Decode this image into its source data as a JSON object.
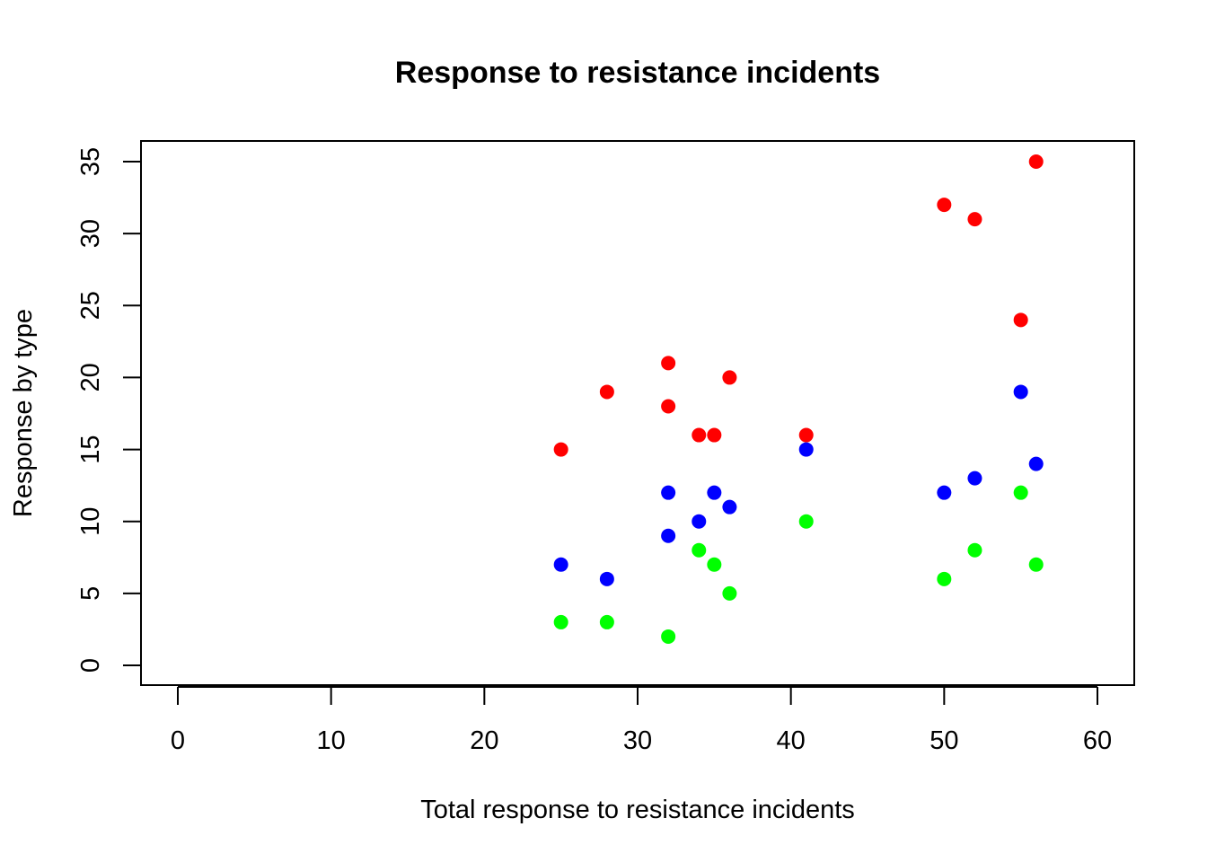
{
  "chart_data": {
    "type": "scatter",
    "title": "Response to resistance incidents",
    "xlabel": "Total response to resistance incidents",
    "ylabel": "Response by type",
    "xlim": [
      0,
      60
    ],
    "ylim": [
      0,
      35
    ],
    "xticks": [
      0,
      10,
      20,
      30,
      40,
      50,
      60
    ],
    "yticks": [
      0,
      5,
      10,
      15,
      20,
      25,
      30,
      35
    ],
    "grid": false,
    "legend": null,
    "series": [
      {
        "color": "#ff0000",
        "points": [
          [
            25,
            15
          ],
          [
            28,
            19
          ],
          [
            32,
            21
          ],
          [
            32,
            18
          ],
          [
            34,
            16
          ],
          [
            35,
            16
          ],
          [
            36,
            20
          ],
          [
            41,
            16
          ],
          [
            50,
            32
          ],
          [
            52,
            31
          ],
          [
            55,
            24
          ],
          [
            56,
            35
          ]
        ]
      },
      {
        "color": "#0000ff",
        "points": [
          [
            25,
            7
          ],
          [
            28,
            6
          ],
          [
            32,
            12
          ],
          [
            32,
            9
          ],
          [
            34,
            10
          ],
          [
            35,
            12
          ],
          [
            36,
            11
          ],
          [
            41,
            15
          ],
          [
            50,
            12
          ],
          [
            52,
            13
          ],
          [
            55,
            19
          ],
          [
            56,
            14
          ]
        ]
      },
      {
        "color": "#00ff00",
        "points": [
          [
            25,
            3
          ],
          [
            28,
            3
          ],
          [
            32,
            2
          ],
          [
            34,
            8
          ],
          [
            35,
            7
          ],
          [
            36,
            5
          ],
          [
            41,
            10
          ],
          [
            50,
            6
          ],
          [
            52,
            8
          ],
          [
            55,
            12
          ],
          [
            56,
            7
          ]
        ]
      }
    ]
  }
}
